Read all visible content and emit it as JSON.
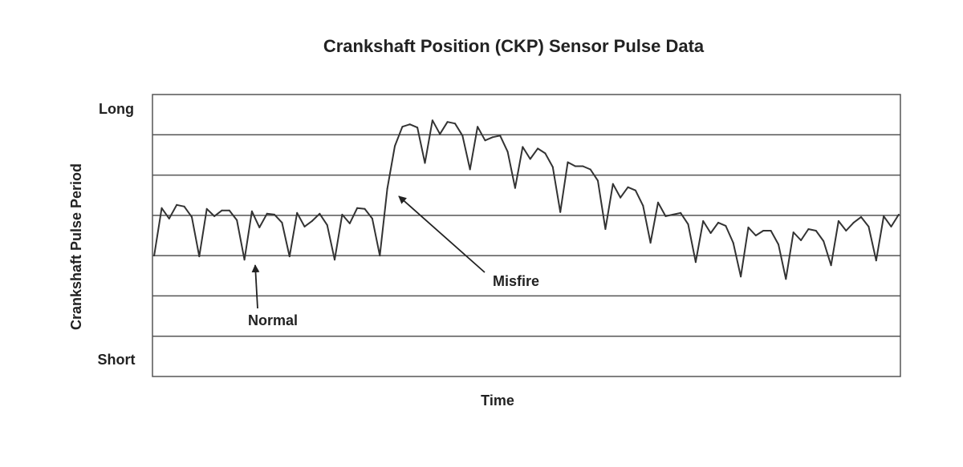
{
  "chart_data": {
    "type": "line",
    "title": "Crankshaft Position (CKP) Sensor Pulse Data",
    "xlabel": "Time",
    "ylabel": "Crankshaft Pulse Period",
    "ytick_labels": {
      "top": "Long",
      "bottom": "Short"
    },
    "ylim": [
      0,
      7
    ],
    "xlim": [
      0,
      133
    ],
    "grid": true,
    "gridlines_y": [
      1,
      2,
      3,
      4,
      5,
      6
    ],
    "colors": {
      "line": "#333333",
      "grid": "#555555",
      "text": "#222222"
    },
    "series": [
      {
        "values": [
          3.0,
          4.18,
          3.92,
          4.26,
          4.22,
          3.96,
          2.98,
          4.16,
          3.98,
          4.12,
          4.12,
          3.88,
          2.9,
          4.1,
          3.7,
          4.04,
          4.02,
          3.82,
          2.98,
          4.06,
          3.72,
          3.86,
          4.04,
          3.76,
          2.9,
          4.02,
          3.8,
          4.18,
          4.16,
          3.92,
          3.0,
          4.66,
          5.72,
          6.2,
          6.26,
          6.18,
          5.3,
          6.36,
          6.02,
          6.32,
          6.28,
          5.98,
          5.14,
          6.2,
          5.86,
          5.94,
          5.98,
          5.58,
          4.68,
          5.7,
          5.4,
          5.66,
          5.54,
          5.2,
          4.08,
          5.32,
          5.22,
          5.22,
          5.14,
          4.86,
          3.66,
          4.78,
          4.44,
          4.7,
          4.62,
          4.24,
          3.32,
          4.32,
          3.98,
          4.02,
          4.06,
          3.78,
          2.84,
          3.86,
          3.56,
          3.82,
          3.74,
          3.32,
          2.48,
          3.7,
          3.5,
          3.62,
          3.62,
          3.28,
          2.42,
          3.58,
          3.38,
          3.66,
          3.62,
          3.36,
          2.76,
          3.86,
          3.62,
          3.82,
          3.96,
          3.72,
          2.88,
          3.98,
          3.72,
          4.02
        ]
      }
    ],
    "annotations": [
      {
        "text": "Normal",
        "target_x": 21.8,
        "target_y": 2.9
      },
      {
        "text": "Misfire",
        "target_x": 41.3,
        "target_y": 4.6
      }
    ]
  }
}
